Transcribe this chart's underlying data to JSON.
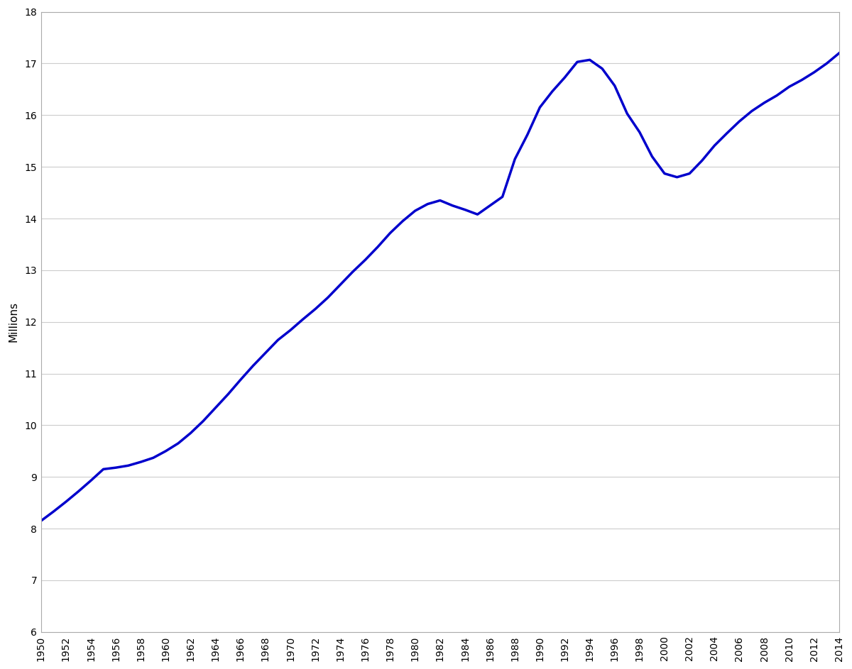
{
  "years": [
    1950,
    1951,
    1952,
    1953,
    1954,
    1955,
    1956,
    1957,
    1958,
    1959,
    1960,
    1961,
    1962,
    1963,
    1964,
    1965,
    1966,
    1967,
    1968,
    1969,
    1970,
    1971,
    1972,
    1973,
    1974,
    1975,
    1976,
    1977,
    1978,
    1979,
    1980,
    1981,
    1982,
    1983,
    1984,
    1985,
    1986,
    1987,
    1988,
    1989,
    1990,
    1991,
    1992,
    1993,
    1994,
    1995,
    1996,
    1997,
    1998,
    1999,
    2000,
    2001,
    2002,
    2003,
    2004,
    2005,
    2006,
    2007,
    2008,
    2009,
    2010,
    2011,
    2012,
    2013,
    2014
  ],
  "population": [
    8.15,
    8.33,
    8.52,
    8.72,
    8.93,
    9.15,
    9.18,
    9.22,
    9.29,
    9.37,
    9.5,
    9.65,
    9.85,
    10.08,
    10.34,
    10.6,
    10.88,
    11.15,
    11.4,
    11.65,
    11.84,
    12.05,
    12.25,
    12.47,
    12.72,
    12.97,
    13.2,
    13.45,
    13.72,
    13.95,
    14.15,
    14.28,
    14.35,
    14.25,
    14.17,
    14.08,
    14.25,
    14.42,
    15.15,
    15.62,
    16.15,
    16.46,
    16.73,
    17.03,
    17.07,
    16.9,
    16.57,
    16.03,
    15.67,
    15.2,
    14.87,
    14.8,
    14.87,
    15.12,
    15.41,
    15.65,
    15.88,
    16.08,
    16.24,
    16.38,
    16.55,
    16.68,
    16.83,
    17.0,
    17.2
  ],
  "line_color": "#0000CC",
  "line_width": 2.5,
  "ylabel": "Millions",
  "ylim": [
    6,
    18
  ],
  "xlim": [
    1950,
    2014
  ],
  "yticks": [
    6,
    7,
    8,
    9,
    10,
    11,
    12,
    13,
    14,
    15,
    16,
    17,
    18
  ],
  "xticks": [
    1950,
    1952,
    1954,
    1956,
    1958,
    1960,
    1962,
    1964,
    1966,
    1968,
    1970,
    1972,
    1974,
    1976,
    1978,
    1980,
    1982,
    1984,
    1986,
    1988,
    1990,
    1992,
    1994,
    1996,
    1998,
    2000,
    2002,
    2004,
    2006,
    2008,
    2010,
    2012,
    2014
  ],
  "background_color": "#ffffff",
  "grid_color": "#cccccc"
}
